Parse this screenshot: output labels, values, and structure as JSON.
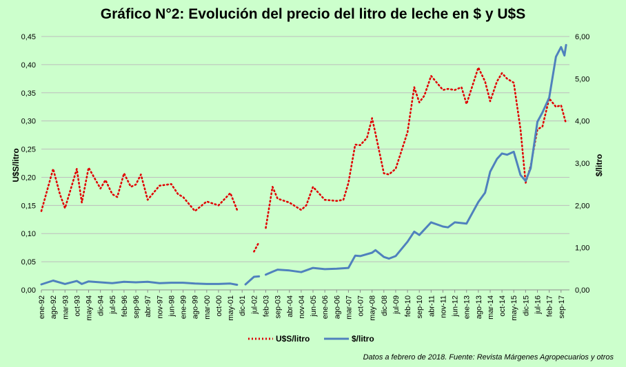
{
  "chart_data": {
    "type": "line",
    "title": "Gráfico N°2: Evolución del precio del litro de leche en $ y U$S",
    "ylabel_left": "U$S/litro",
    "ylabel_right": "$/litro",
    "ylim_left": [
      0,
      0.45
    ],
    "ylim_right": [
      0,
      6
    ],
    "yticks_left": [
      "0,00",
      "0,05",
      "0,10",
      "0,15",
      "0,20",
      "0,25",
      "0,30",
      "0,35",
      "0,40",
      "0,45"
    ],
    "yticks_right": [
      "0,00",
      "1,00",
      "2,00",
      "3,00",
      "4,00",
      "5,00",
      "6,00"
    ],
    "x_labels": [
      "ene-92",
      "ago-92",
      "mar-93",
      "oct-93",
      "may-94",
      "dic-94",
      "jul-95",
      "feb-96",
      "sep-96",
      "abr-97",
      "nov-97",
      "jun-98",
      "ene-99",
      "ago-99",
      "mar-00",
      "oct-00",
      "may-01",
      "dic-01",
      "jul-02",
      "feb-03",
      "sep-03",
      "abr-04",
      "nov-04",
      "jun-05",
      "ene-06",
      "ago-06",
      "mar-07",
      "oct-07",
      "may-08",
      "dic-08",
      "jul-09",
      "feb-10",
      "sep-10",
      "abr-11",
      "nov-11",
      "jun-12",
      "ene-13",
      "ago-13",
      "mar-14",
      "oct-14",
      "may-15",
      "dic-15",
      "jul-16",
      "feb-17",
      "sep-17"
    ],
    "grid": true,
    "legend_position": "bottom",
    "series": [
      {
        "name": "U$S/litro",
        "axis": "left",
        "color": "#e00000",
        "style": "dotted",
        "points": [
          [
            "ene-92",
            0.14
          ],
          [
            "ago-92",
            0.215
          ],
          [
            "dic-92",
            0.17
          ],
          [
            "mar-93",
            0.145
          ],
          [
            "oct-93",
            0.215
          ],
          [
            "ene-94",
            0.155
          ],
          [
            "may-94",
            0.217
          ],
          [
            "dic-94",
            0.18
          ],
          [
            "mar-95",
            0.195
          ],
          [
            "jul-95",
            0.17
          ],
          [
            "oct-95",
            0.165
          ],
          [
            "feb-96",
            0.207
          ],
          [
            "jun-96",
            0.183
          ],
          [
            "sep-96",
            0.187
          ],
          [
            "dic-96",
            0.205
          ],
          [
            "abr-97",
            0.16
          ],
          [
            "nov-97",
            0.185
          ],
          [
            "jun-98",
            0.188
          ],
          [
            "oct-98",
            0.17
          ],
          [
            "ene-99",
            0.165
          ],
          [
            "ago-99",
            0.14
          ],
          [
            "mar-00",
            0.157
          ],
          [
            "oct-00",
            0.15
          ],
          [
            "may-01",
            0.172
          ],
          [
            "sep-01",
            0.142
          ],
          [
            "dic-01",
            null
          ],
          [
            "jul-02",
            0.068
          ],
          [
            "oct-02",
            0.085
          ],
          [
            "dic-02",
            null
          ],
          [
            "feb-03",
            0.11
          ],
          [
            "jun-03",
            0.183
          ],
          [
            "sep-03",
            0.162
          ],
          [
            "abr-04",
            0.155
          ],
          [
            "nov-04",
            0.142
          ],
          [
            "feb-05",
            0.15
          ],
          [
            "jun-05",
            0.183
          ],
          [
            "ene-06",
            0.16
          ],
          [
            "ago-06",
            0.158
          ],
          [
            "dic-06",
            0.16
          ],
          [
            "mar-07",
            0.19
          ],
          [
            "jul-07",
            0.258
          ],
          [
            "oct-07",
            0.257
          ],
          [
            "feb-08",
            0.27
          ],
          [
            "may-08",
            0.305
          ],
          [
            "jul-08",
            0.278
          ],
          [
            "dic-08",
            0.207
          ],
          [
            "mar-09",
            0.205
          ],
          [
            "jul-09",
            0.215
          ],
          [
            "feb-10",
            0.28
          ],
          [
            "jun-10",
            0.36
          ],
          [
            "sep-10",
            0.333
          ],
          [
            "dic-10",
            0.345
          ],
          [
            "abr-11",
            0.38
          ],
          [
            "nov-11",
            0.355
          ],
          [
            "feb-12",
            0.357
          ],
          [
            "jun-12",
            0.355
          ],
          [
            "oct-12",
            0.36
          ],
          [
            "ene-13",
            0.33
          ],
          [
            "ago-13",
            0.395
          ],
          [
            "dic-13",
            0.37
          ],
          [
            "mar-14",
            0.335
          ],
          [
            "jul-14",
            0.37
          ],
          [
            "oct-14",
            0.385
          ],
          [
            "ene-15",
            0.375
          ],
          [
            "may-15",
            0.368
          ],
          [
            "sep-15",
            0.285
          ],
          [
            "dic-15",
            0.19
          ],
          [
            "mar-16",
            0.22
          ],
          [
            "jul-16",
            0.285
          ],
          [
            "oct-16",
            0.29
          ],
          [
            "feb-17",
            0.34
          ],
          [
            "jun-17",
            0.325
          ],
          [
            "sep-17",
            0.328
          ],
          [
            "dic-17",
            0.295
          ]
        ]
      },
      {
        "name": "$/litro",
        "axis": "right",
        "color": "#4f81bd",
        "style": "solid",
        "points": [
          [
            "ene-92",
            0.13
          ],
          [
            "ago-92",
            0.22
          ],
          [
            "mar-93",
            0.14
          ],
          [
            "oct-93",
            0.21
          ],
          [
            "ene-94",
            0.14
          ],
          [
            "may-94",
            0.2
          ],
          [
            "dic-94",
            0.18
          ],
          [
            "jul-95",
            0.16
          ],
          [
            "feb-96",
            0.19
          ],
          [
            "sep-96",
            0.18
          ],
          [
            "abr-97",
            0.19
          ],
          [
            "nov-97",
            0.16
          ],
          [
            "jun-98",
            0.17
          ],
          [
            "ene-99",
            0.17
          ],
          [
            "ago-99",
            0.15
          ],
          [
            "mar-00",
            0.14
          ],
          [
            "oct-00",
            0.14
          ],
          [
            "may-01",
            0.15
          ],
          [
            "sep-01",
            0.12
          ],
          [
            "dic-01",
            null
          ],
          [
            "feb-02",
            0.13
          ],
          [
            "jul-02",
            0.31
          ],
          [
            "oct-02",
            0.32
          ],
          [
            "dic-02",
            null
          ],
          [
            "feb-03",
            0.36
          ],
          [
            "jun-03",
            0.43
          ],
          [
            "sep-03",
            0.48
          ],
          [
            "abr-04",
            0.46
          ],
          [
            "nov-04",
            0.42
          ],
          [
            "jun-05",
            0.52
          ],
          [
            "ene-06",
            0.49
          ],
          [
            "ago-06",
            0.5
          ],
          [
            "mar-07",
            0.52
          ],
          [
            "jul-07",
            0.81
          ],
          [
            "oct-07",
            0.8
          ],
          [
            "may-08",
            0.88
          ],
          [
            "jul-08",
            0.94
          ],
          [
            "dic-08",
            0.78
          ],
          [
            "mar-09",
            0.74
          ],
          [
            "jul-09",
            0.8
          ],
          [
            "feb-10",
            1.14
          ],
          [
            "jun-10",
            1.38
          ],
          [
            "sep-10",
            1.3
          ],
          [
            "abr-11",
            1.6
          ],
          [
            "nov-11",
            1.5
          ],
          [
            "feb-12",
            1.48
          ],
          [
            "jun-12",
            1.6
          ],
          [
            "ene-13",
            1.57
          ],
          [
            "ago-13",
            2.08
          ],
          [
            "dic-13",
            2.3
          ],
          [
            "mar-14",
            2.8
          ],
          [
            "jul-14",
            3.1
          ],
          [
            "oct-14",
            3.23
          ],
          [
            "ene-15",
            3.2
          ],
          [
            "may-15",
            3.27
          ],
          [
            "sep-15",
            2.72
          ],
          [
            "dic-15",
            2.58
          ],
          [
            "mar-16",
            2.88
          ],
          [
            "jul-16",
            3.98
          ],
          [
            "oct-16",
            4.2
          ],
          [
            "feb-17",
            4.55
          ],
          [
            "jun-17",
            5.52
          ],
          [
            "sep-17",
            5.75
          ],
          [
            "nov-17",
            5.55
          ],
          [
            "dic-17",
            5.8
          ]
        ]
      }
    ]
  },
  "source_note": "Datos a febrero de 2018. Fuente: Revista Márgenes  Agropecuarios  y otros",
  "colors": {
    "background": "#ccffcc",
    "grid": "#bdbdbd"
  }
}
